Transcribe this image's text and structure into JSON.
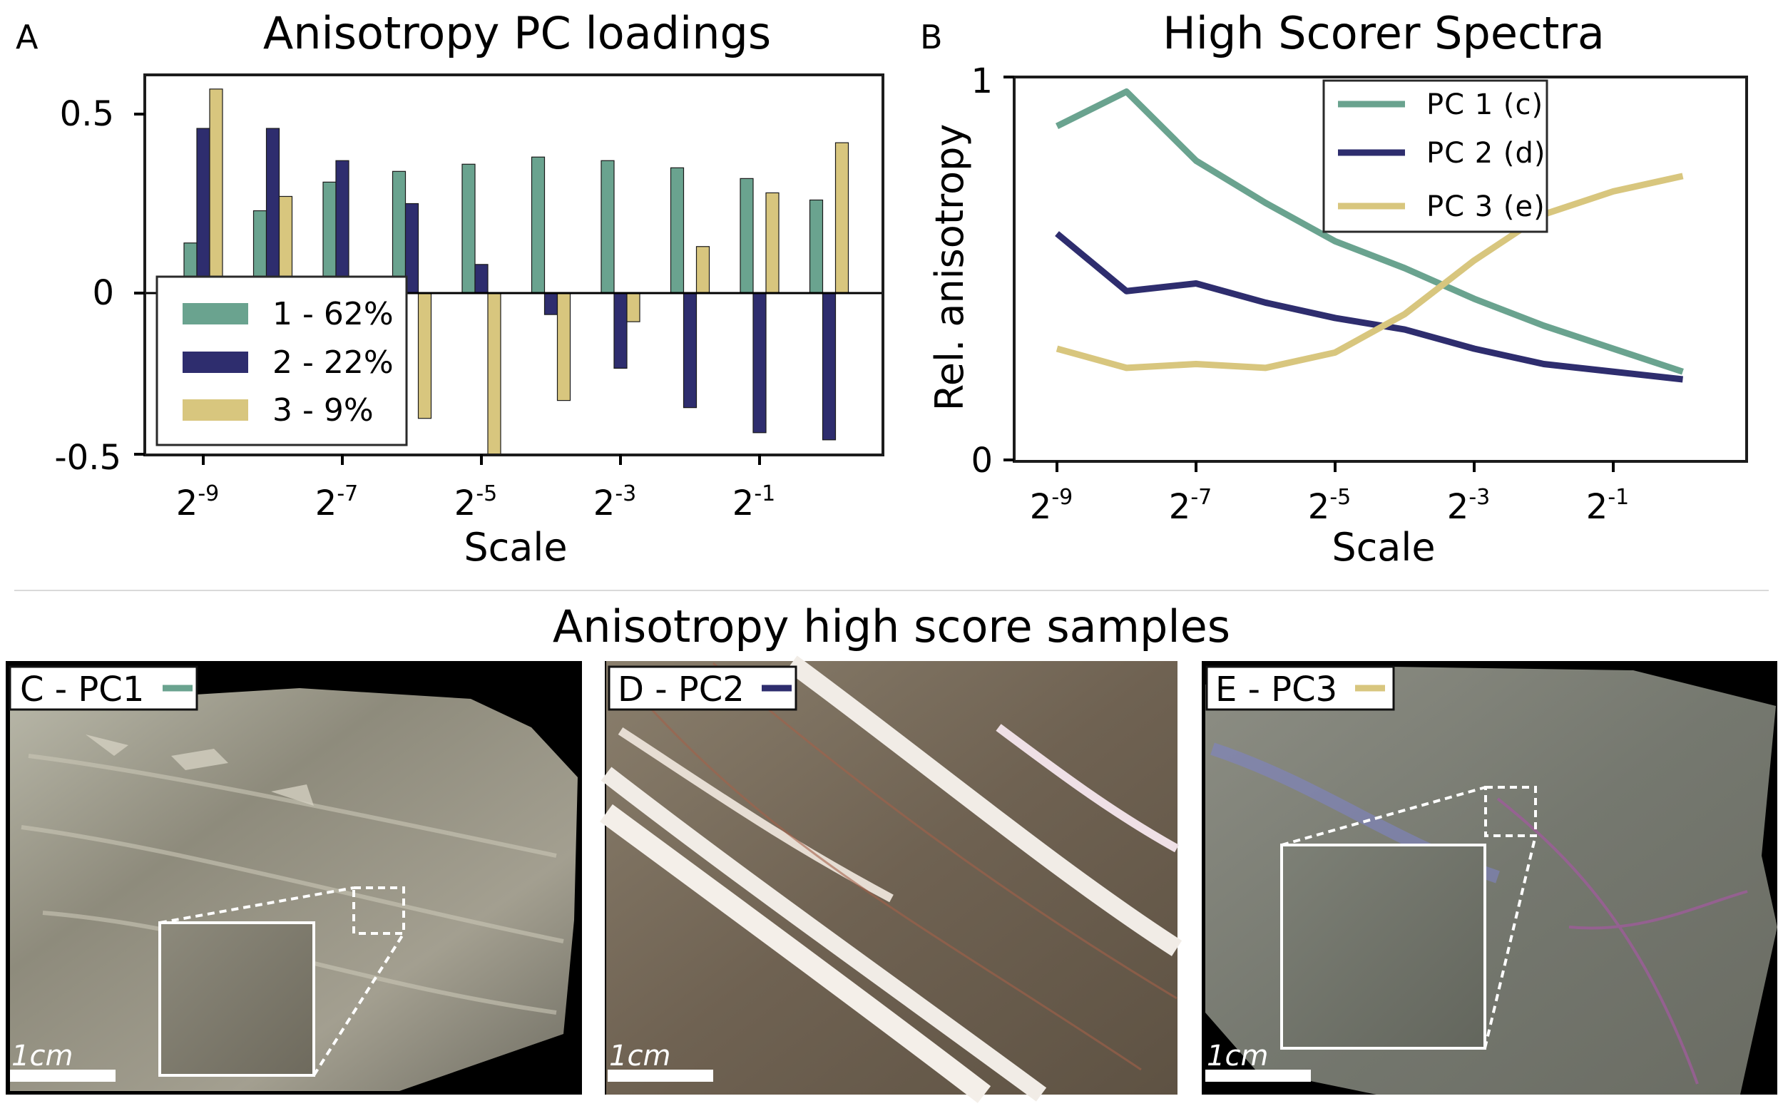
{
  "panel_a": {
    "letter": "A",
    "title": "Anisotropy PC loadings",
    "xlabel": "Scale",
    "y_ticks": [
      "0.5",
      "0",
      "-0.5"
    ],
    "x_ticks": [
      {
        "base": "2",
        "exp": "-9"
      },
      {
        "base": "2",
        "exp": "-7"
      },
      {
        "base": "2",
        "exp": "-5"
      },
      {
        "base": "2",
        "exp": "-3"
      },
      {
        "base": "2",
        "exp": "-1"
      }
    ],
    "legend": [
      "1 - 62%",
      "2 - 22%",
      "3 - 9%"
    ]
  },
  "panel_b": {
    "letter": "B",
    "title": "High Scorer Spectra",
    "ylabel": "Rel. anisotropy",
    "xlabel": "Scale",
    "y_ticks": [
      "1",
      "0"
    ],
    "x_ticks": [
      {
        "base": "2",
        "exp": "-9"
      },
      {
        "base": "2",
        "exp": "-7"
      },
      {
        "base": "2",
        "exp": "-5"
      },
      {
        "base": "2",
        "exp": "-3"
      },
      {
        "base": "2",
        "exp": "-1"
      }
    ],
    "legend": [
      "PC 1 (c)",
      "PC 2 (d)",
      "PC 3 (e)"
    ]
  },
  "samples": {
    "title": "Anisotropy high score samples",
    "labels": [
      "C - PC1",
      "D - PC2",
      "E - PC3"
    ],
    "scale_text": "1cm"
  },
  "colors": {
    "pc1": "#6aa38f",
    "pc2": "#2e2d6e",
    "pc3": "#d8c67e"
  },
  "chart_data": [
    {
      "type": "bar",
      "title": "Anisotropy PC loadings",
      "xlabel": "Scale",
      "ylabel": "",
      "ylim": [
        -0.5,
        0.6
      ],
      "scale_exponents": [
        -9,
        -8,
        -7,
        -6,
        -5,
        -4,
        -3,
        -2,
        -1,
        0
      ],
      "series": [
        {
          "name": "1 - 62%",
          "values": [
            0.14,
            0.23,
            0.31,
            0.34,
            0.36,
            0.38,
            0.37,
            0.35,
            0.32,
            0.26
          ]
        },
        {
          "name": "2 - 22%",
          "values": [
            0.46,
            0.46,
            0.37,
            0.25,
            0.08,
            -0.06,
            -0.21,
            -0.32,
            -0.39,
            -0.41
          ]
        },
        {
          "name": "3 - 9%",
          "values": [
            0.57,
            0.27,
            -0.03,
            -0.35,
            -0.45,
            -0.3,
            -0.08,
            0.13,
            0.28,
            0.42
          ]
        }
      ],
      "legend_position": "lower-left"
    },
    {
      "type": "line",
      "title": "High Scorer Spectra",
      "xlabel": "Scale",
      "ylabel": "Rel. anisotropy",
      "ylim": [
        0,
        1
      ],
      "scale_exponents": [
        -9,
        -8,
        -7,
        -6,
        -5,
        -4,
        -3,
        -2,
        -1,
        0
      ],
      "series": [
        {
          "name": "PC 1 (c)",
          "values": [
            0.87,
            0.96,
            0.78,
            0.67,
            0.57,
            0.5,
            0.42,
            0.35,
            0.29,
            0.23
          ]
        },
        {
          "name": "PC 2 (d)",
          "values": [
            0.59,
            0.44,
            0.46,
            0.41,
            0.37,
            0.34,
            0.29,
            0.25,
            0.23,
            0.21
          ]
        },
        {
          "name": "PC 3 (e)",
          "values": [
            0.29,
            0.24,
            0.25,
            0.24,
            0.28,
            0.38,
            0.52,
            0.64,
            0.7,
            0.74
          ]
        }
      ],
      "legend_position": "top-center"
    }
  ]
}
